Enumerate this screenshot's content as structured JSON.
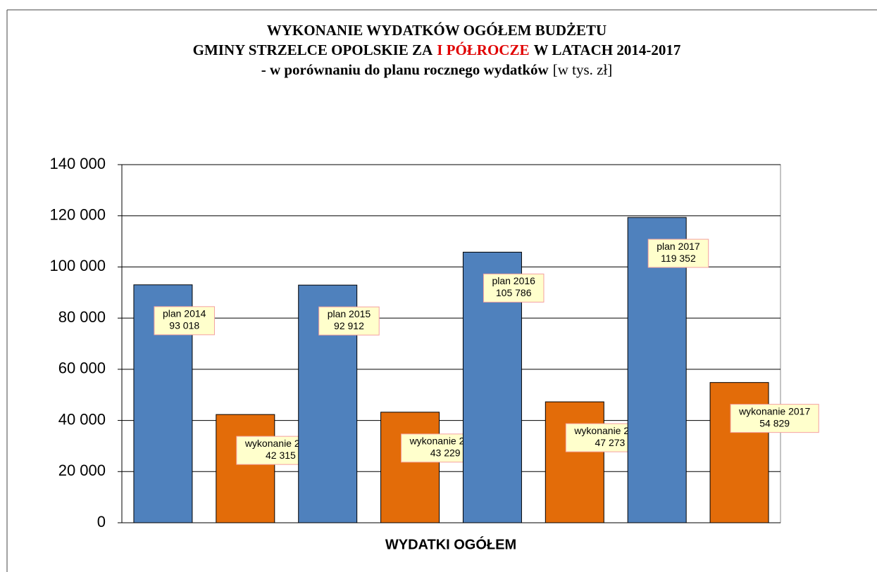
{
  "chart_data": {
    "type": "bar",
    "title": [
      "WYKONANIE WYDATKÓW OGÓŁEM BUDŻETU",
      "GMINY STRZELCE OPOLSKIE ZA",
      "I PÓŁROCZE",
      "W LATACH 2014-2017"
    ],
    "subtitle": [
      "- w porównaniu do planu rocznego wydatków",
      "[w tys. zł]"
    ],
    "xlabel": "WYDATKI OGÓŁEM",
    "categories": [
      "plan 2014",
      "wykonanie 2014",
      "plan 2015",
      "wykonanie 2015",
      "plan 2016",
      "wykonanie 2016",
      "plan 2017",
      "wykonanie 2017"
    ],
    "values": [
      93018,
      42315,
      92912,
      43229,
      105786,
      47273,
      119352,
      54829
    ],
    "value_labels": [
      "93 018",
      "42 315",
      "92 912",
      "43 229",
      "105 786",
      "47 273",
      "119 352",
      "54 829"
    ],
    "colors": [
      "#4f81bd",
      "#e36c09",
      "#4f81bd",
      "#e36c09",
      "#4f81bd",
      "#e36c09",
      "#4f81bd",
      "#e36c09"
    ],
    "ylim": [
      0,
      140000
    ],
    "yticks": [
      0,
      {
        "value": 20000,
        "label": "20 000"
      },
      {
        "value": 40000,
        "label": "40 000"
      },
      {
        "value": 60000,
        "label": "60 000"
      },
      {
        "value": 80000,
        "label": "80 000"
      },
      {
        "value": 100000,
        "label": "100 000"
      },
      {
        "value": 120000,
        "label": "120 000"
      },
      {
        "value": 140000,
        "label": "140 000"
      }
    ],
    "grid": true
  }
}
